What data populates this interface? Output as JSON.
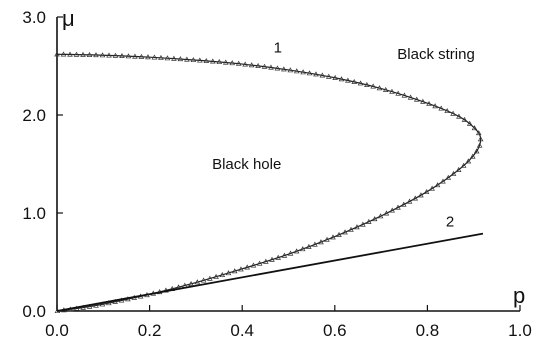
{
  "chart_data": {
    "type": "line",
    "title": "",
    "xlabel": "p",
    "ylabel": "μ",
    "xlim": [
      0.0,
      1.0
    ],
    "ylim": [
      0.0,
      3.0
    ],
    "x_ticks": [
      "0.0",
      "0.2",
      "0.4",
      "0.6",
      "0.8",
      "1.0"
    ],
    "y_ticks": [
      "0.0",
      "1.0",
      "2.0",
      "3.0"
    ],
    "grid": false,
    "annotations": {
      "black_string": "Black string",
      "black_hole": "Black hole"
    },
    "series": [
      {
        "name": "1",
        "style": "solid line with open triangle markers",
        "points": [
          [
            0.0,
            2.62
          ],
          [
            0.1,
            2.61
          ],
          [
            0.2,
            2.59
          ],
          [
            0.3,
            2.56
          ],
          [
            0.4,
            2.52
          ],
          [
            0.5,
            2.46
          ],
          [
            0.6,
            2.38
          ],
          [
            0.7,
            2.27
          ],
          [
            0.8,
            2.12
          ],
          [
            0.87,
            1.98
          ],
          [
            0.905,
            1.85
          ],
          [
            0.915,
            1.75
          ],
          [
            0.905,
            1.62
          ],
          [
            0.87,
            1.45
          ],
          [
            0.8,
            1.22
          ],
          [
            0.7,
            0.97
          ],
          [
            0.6,
            0.76
          ],
          [
            0.5,
            0.58
          ],
          [
            0.4,
            0.43
          ],
          [
            0.3,
            0.29
          ],
          [
            0.2,
            0.17
          ],
          [
            0.1,
            0.07
          ],
          [
            0.05,
            0.03
          ],
          [
            0.0,
            0.0
          ]
        ]
      },
      {
        "name": "2",
        "style": "solid line",
        "points": [
          [
            0.0,
            0.0
          ],
          [
            0.92,
            0.79
          ]
        ]
      }
    ]
  }
}
